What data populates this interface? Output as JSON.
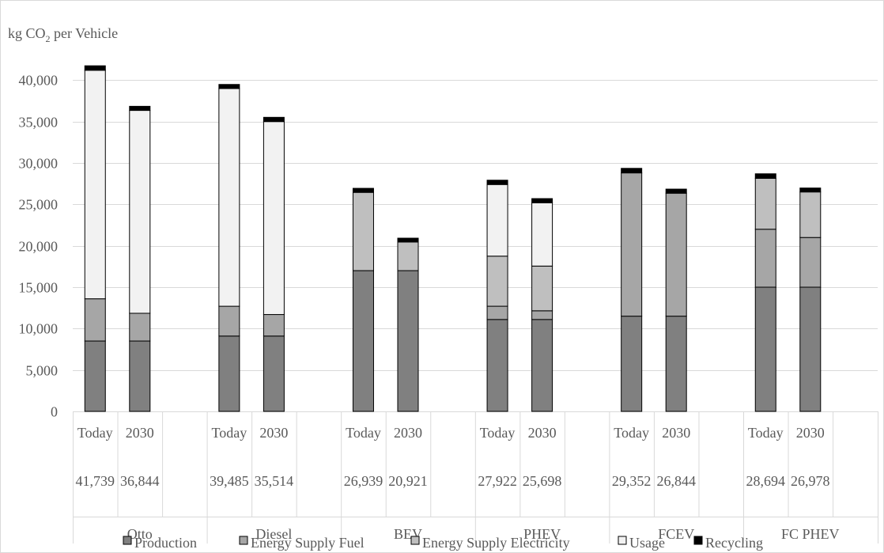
{
  "chart_data": {
    "type": "bar",
    "stacked": true,
    "ylabel": "kg CO2 per Vehicle",
    "ylabel_main": "kg CO",
    "ylabel_sub": "2",
    "ylabel_rest": " per Vehicle",
    "ylim": [
      0,
      45000
    ],
    "yticks": [
      0,
      5000,
      10000,
      15000,
      20000,
      25000,
      30000,
      35000,
      40000
    ],
    "ytick_labels": [
      "0",
      "5,000",
      "10,000",
      "15,000",
      "20,000",
      "25,000",
      "30,000",
      "35,000",
      "40,000"
    ],
    "grid": true,
    "legend_position": "bottom",
    "groups": [
      {
        "name": "Otto",
        "bars": [
          {
            "label": "Today",
            "total": "41,739",
            "values": [
              8500,
              5100,
              0,
              27600,
              539
            ]
          },
          {
            "label": "2030",
            "total": "36,844",
            "values": [
              8500,
              3350,
              0,
              24500,
              494
            ]
          }
        ]
      },
      {
        "name": "Diesel",
        "bars": [
          {
            "label": "Today",
            "total": "39,485",
            "values": [
              9100,
              3600,
              0,
              26300,
              485
            ]
          },
          {
            "label": "2030",
            "total": "35,514",
            "values": [
              9100,
              2600,
              0,
              23300,
              514
            ]
          }
        ]
      },
      {
        "name": "BEV",
        "bars": [
          {
            "label": "Today",
            "total": "26,939",
            "values": [
              17000,
              0,
              9450,
              0,
              489
            ]
          },
          {
            "label": "2030",
            "total": "20,921",
            "values": [
              17000,
              0,
              3450,
              0,
              471
            ]
          }
        ]
      },
      {
        "name": "PHEV",
        "bars": [
          {
            "label": "Today",
            "total": "27,922",
            "values": [
              11100,
              1600,
              6050,
              8650,
              522
            ]
          },
          {
            "label": "2030",
            "total": "25,698",
            "values": [
              11100,
              1050,
              5400,
              7650,
              498
            ]
          }
        ]
      },
      {
        "name": "FCEV",
        "bars": [
          {
            "label": "Today",
            "total": "29,352",
            "values": [
              11500,
              17300,
              0,
              0,
              552
            ]
          },
          {
            "label": "2030",
            "total": "26,844",
            "values": [
              11500,
              14850,
              0,
              0,
              494
            ]
          }
        ]
      },
      {
        "name": "FC PHEV",
        "bars": [
          {
            "label": "Today",
            "total": "28,694",
            "values": [
              15000,
              7000,
              6150,
              0,
              544
            ]
          },
          {
            "label": "2030",
            "total": "26,978",
            "values": [
              15000,
              6000,
              5500,
              0,
              478
            ]
          }
        ]
      }
    ],
    "series": [
      {
        "name": "Production",
        "color": "#808080"
      },
      {
        "name": "Energy Supply Fuel",
        "color": "#a6a6a6"
      },
      {
        "name": "Energy Supply Electricity",
        "color": "#bfbfbf"
      },
      {
        "name": "Usage",
        "color": "#f2f2f2"
      },
      {
        "name": "Recycling",
        "color": "#000000"
      }
    ]
  }
}
